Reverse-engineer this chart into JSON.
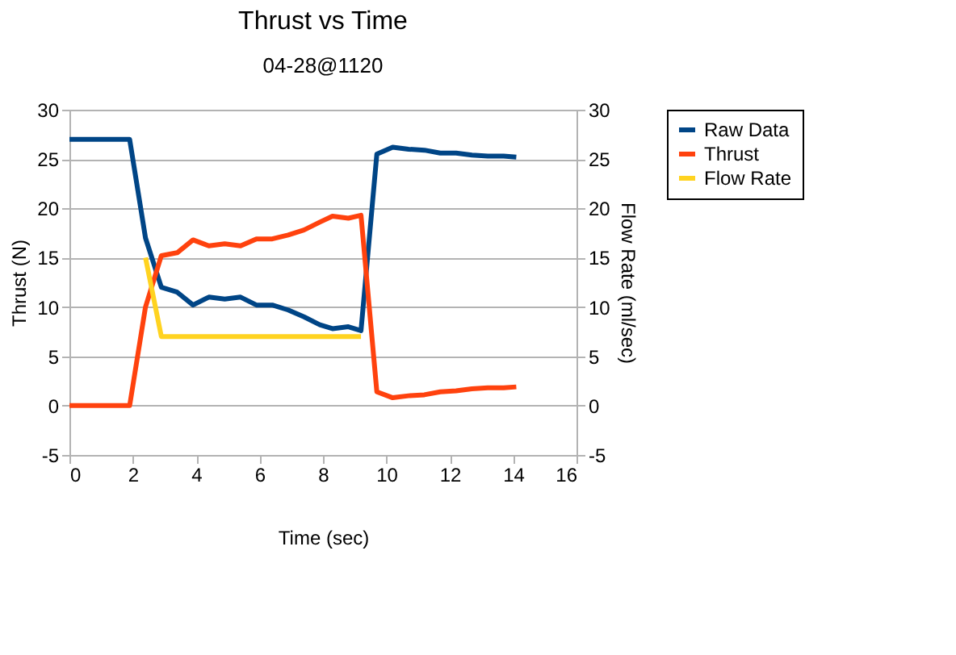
{
  "chart_data": {
    "type": "line",
    "title": "Thrust vs Time",
    "subtitle": "04-28@1120",
    "xlabel": "Time (sec)",
    "ylabel": "Thrust (N)",
    "y2label": "Flow Rate (ml/sec)",
    "x": [
      0,
      0.5,
      1.0,
      1.5,
      1.9,
      2.4,
      2.9,
      3.4,
      3.9,
      4.4,
      4.9,
      5.4,
      5.9,
      6.4,
      6.9,
      7.4,
      7.9,
      8.3,
      8.8,
      9.2,
      9.7,
      10.2,
      10.7,
      11.2,
      11.7,
      12.2,
      12.7,
      13.2,
      13.7,
      14.1
    ],
    "series": [
      {
        "name": "Raw Data",
        "color": "#004586",
        "values": [
          27,
          27,
          27,
          27,
          27,
          17,
          12,
          11.5,
          10.2,
          11,
          10.8,
          11,
          10.2,
          10.2,
          9.7,
          9.0,
          8.2,
          7.8,
          8,
          7.6,
          25.5,
          26.2,
          26,
          25.9,
          25.6,
          25.6,
          25.4,
          25.3,
          25.3,
          25.2
        ]
      },
      {
        "name": "Thrust",
        "color": "#ff420e",
        "values": [
          0,
          0,
          0,
          0,
          0,
          10,
          15.2,
          15.5,
          16.8,
          16.2,
          16.4,
          16.2,
          16.9,
          16.9,
          17.3,
          17.8,
          18.6,
          19.2,
          19,
          19.3,
          1.4,
          0.8,
          1.0,
          1.1,
          1.4,
          1.5,
          1.7,
          1.8,
          1.8,
          1.9
        ]
      },
      {
        "name": "Flow Rate",
        "color": "#ffd320",
        "axis": "y2",
        "values": [
          null,
          null,
          null,
          null,
          null,
          15,
          7,
          7,
          7,
          7,
          7,
          7,
          7,
          7,
          7,
          7,
          7,
          7,
          7,
          7,
          null,
          null,
          null,
          null,
          null,
          null,
          null,
          null,
          null,
          null
        ]
      }
    ],
    "xlim": [
      0,
      16
    ],
    "xticks": [
      0,
      2,
      4,
      6,
      8,
      10,
      12,
      14,
      16
    ],
    "ylim": [
      -5,
      30
    ],
    "yticks": [
      -5,
      0,
      5,
      10,
      15,
      20,
      25,
      30
    ],
    "y2lim": [
      -5,
      30
    ],
    "y2ticks": [
      -5,
      0,
      5,
      10,
      15,
      20,
      25,
      30
    ],
    "grid": "y",
    "legend": "right",
    "marker": "none",
    "line_style": "solid"
  }
}
